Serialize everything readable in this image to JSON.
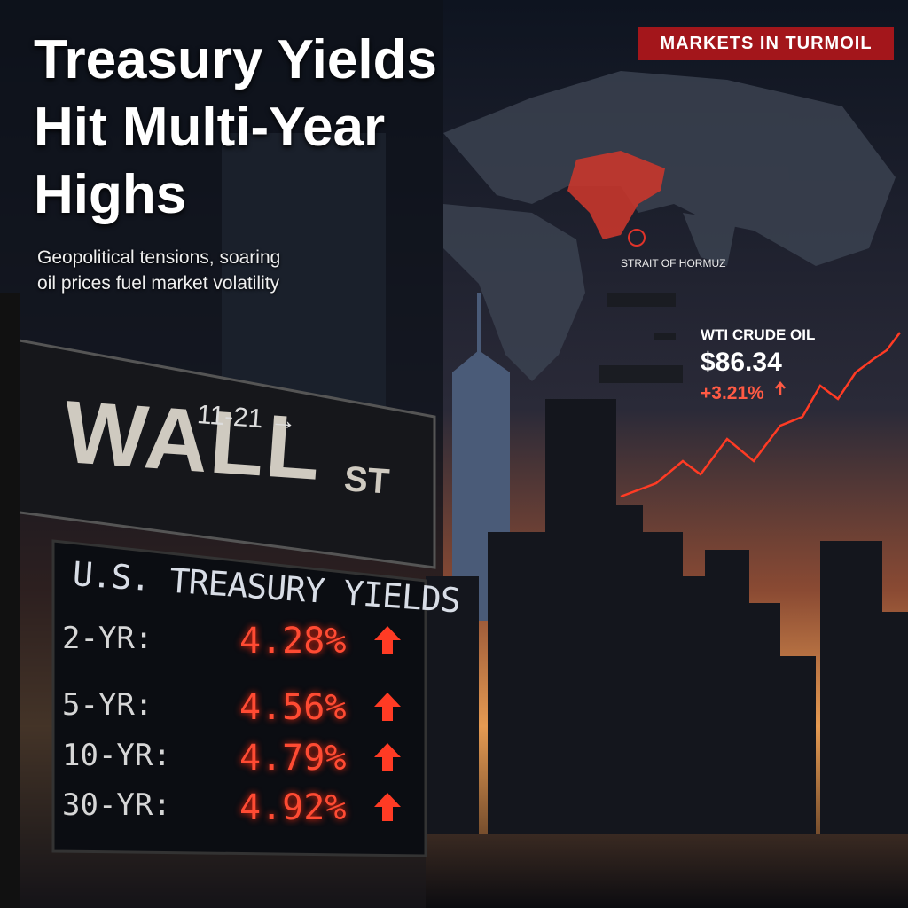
{
  "header": {
    "title": "Treasury Yields Hit Multi-Year Highs",
    "subtitle": "Geopolitical tensions, soaring oil prices fuel market volatility",
    "badge": "MARKETS IN TURMOIL"
  },
  "map": {
    "label": "STRAIT OF HORMUZ"
  },
  "oil": {
    "label": "WTI CRUDE OIL",
    "price": "$86.34",
    "change": "+3.21%"
  },
  "sign": {
    "number": "11-21 →",
    "street": "WALL",
    "suffix": "ST"
  },
  "board": {
    "title": "U.S. TREASURY YIELDS",
    "rows": [
      [
        "2-YR:",
        "4.28%"
      ],
      [
        "5-YR:",
        "4.56%"
      ],
      [
        "10-YR:",
        "4.79%"
      ],
      [
        "30-YR:",
        "4.92%"
      ]
    ]
  }
}
